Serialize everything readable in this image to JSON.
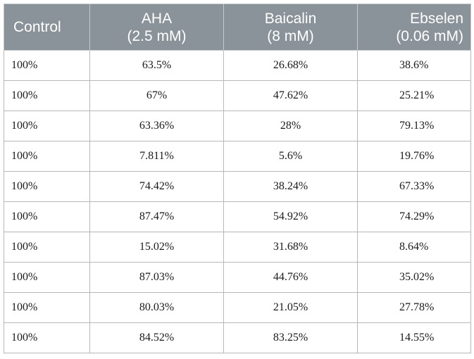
{
  "table": {
    "headers": [
      {
        "line1": "Control",
        "line2": ""
      },
      {
        "line1": "AHA",
        "line2": "(2.5 mM)"
      },
      {
        "line1": "Baicalin",
        "line2": "(8 mM)"
      },
      {
        "line1": "Ebselen",
        "line2": "(0.06 mM)"
      }
    ],
    "rows": [
      [
        "100%",
        "63.5%",
        "26.68%",
        "38.6%"
      ],
      [
        "100%",
        "67%",
        "47.62%",
        "25.21%"
      ],
      [
        "100%",
        "63.36%",
        "28%",
        "79.13%"
      ],
      [
        "100%",
        "7.811%",
        "5.6%",
        "19.76%"
      ],
      [
        "100%",
        "74.42%",
        "38.24%",
        "67.33%"
      ],
      [
        "100%",
        "87.47%",
        "54.92%",
        "74.29%"
      ],
      [
        "100%",
        "15.02%",
        "31.68%",
        "8.64%"
      ],
      [
        "100%",
        "87.03%",
        "44.76%",
        "35.02%"
      ],
      [
        "100%",
        "80.03%",
        "21.05%",
        "27.78%"
      ],
      [
        "100%",
        "84.52%",
        "83.25%",
        "14.55%"
      ]
    ]
  },
  "colors": {
    "header_background": "#8a9399",
    "header_text": "#ffffff",
    "border": "#b8b8b8"
  }
}
